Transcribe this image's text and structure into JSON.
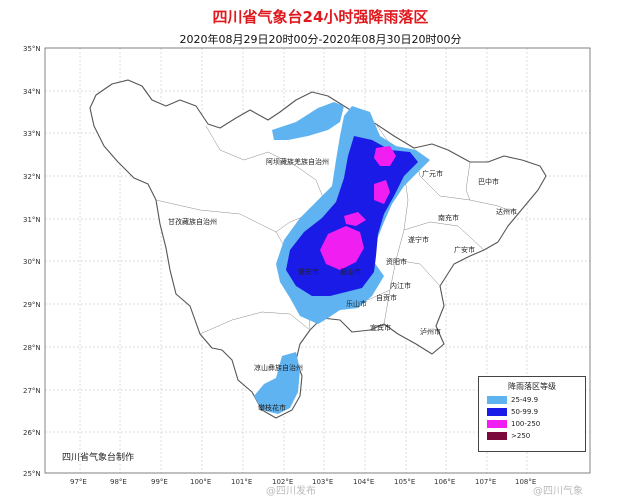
{
  "title": "四川省气象台24小时强降雨落区",
  "subtitle": "2020年08月29日20时00分-2020年08月30日20时00分",
  "lat_labels": [
    "35°N",
    "34°N",
    "33°N",
    "32°N",
    "31°N",
    "30°N",
    "29°N",
    "28°N",
    "27°N",
    "26°N",
    "25°N"
  ],
  "lon_labels": [
    "97°E",
    "98°E",
    "99°E",
    "100°E",
    "101°E",
    "102°E",
    "103°E",
    "104°E",
    "105°E",
    "106°E",
    "107°E",
    "108°E"
  ],
  "prefectures": {
    "aba": "阿坝藏族羌族自治州",
    "ganzi": "甘孜藏族自治州",
    "liangshan": "凉山彝族自治州"
  },
  "cities": {
    "guangyuan": "广元市",
    "bazhong": "巴中市",
    "dazhou": "达州市",
    "nanchong": "南充市",
    "suining": "遂宁市",
    "guangan": "广安市",
    "ziyang": "资阳市",
    "neijiang": "内江市",
    "zigong": "自贡市",
    "leshan": "乐山市",
    "yibin": "宜宾市",
    "luzhou": "泸州市",
    "yaan": "雅安市",
    "meishan": "眉山市",
    "panzhihua": "攀枝花市"
  },
  "legend": {
    "title": "降雨落区等级",
    "items": [
      {
        "label": "25-49.9",
        "color": "#5fb3f0"
      },
      {
        "label": "50-99.9",
        "color": "#1b1be8"
      },
      {
        "label": "100-250",
        "color": "#f01ef0"
      },
      {
        "label": ">250",
        "color": "#7a0a3c"
      }
    ]
  },
  "colors": {
    "rain_25": "#5fb3f0",
    "rain_50": "#1b1be8",
    "rain_100": "#f01ef0",
    "boundary": "#555555",
    "grid": "#b8b8b8"
  },
  "credit": "四川省气象台制作",
  "watermarks": [
    "@四川发布",
    "@四川气象"
  ]
}
